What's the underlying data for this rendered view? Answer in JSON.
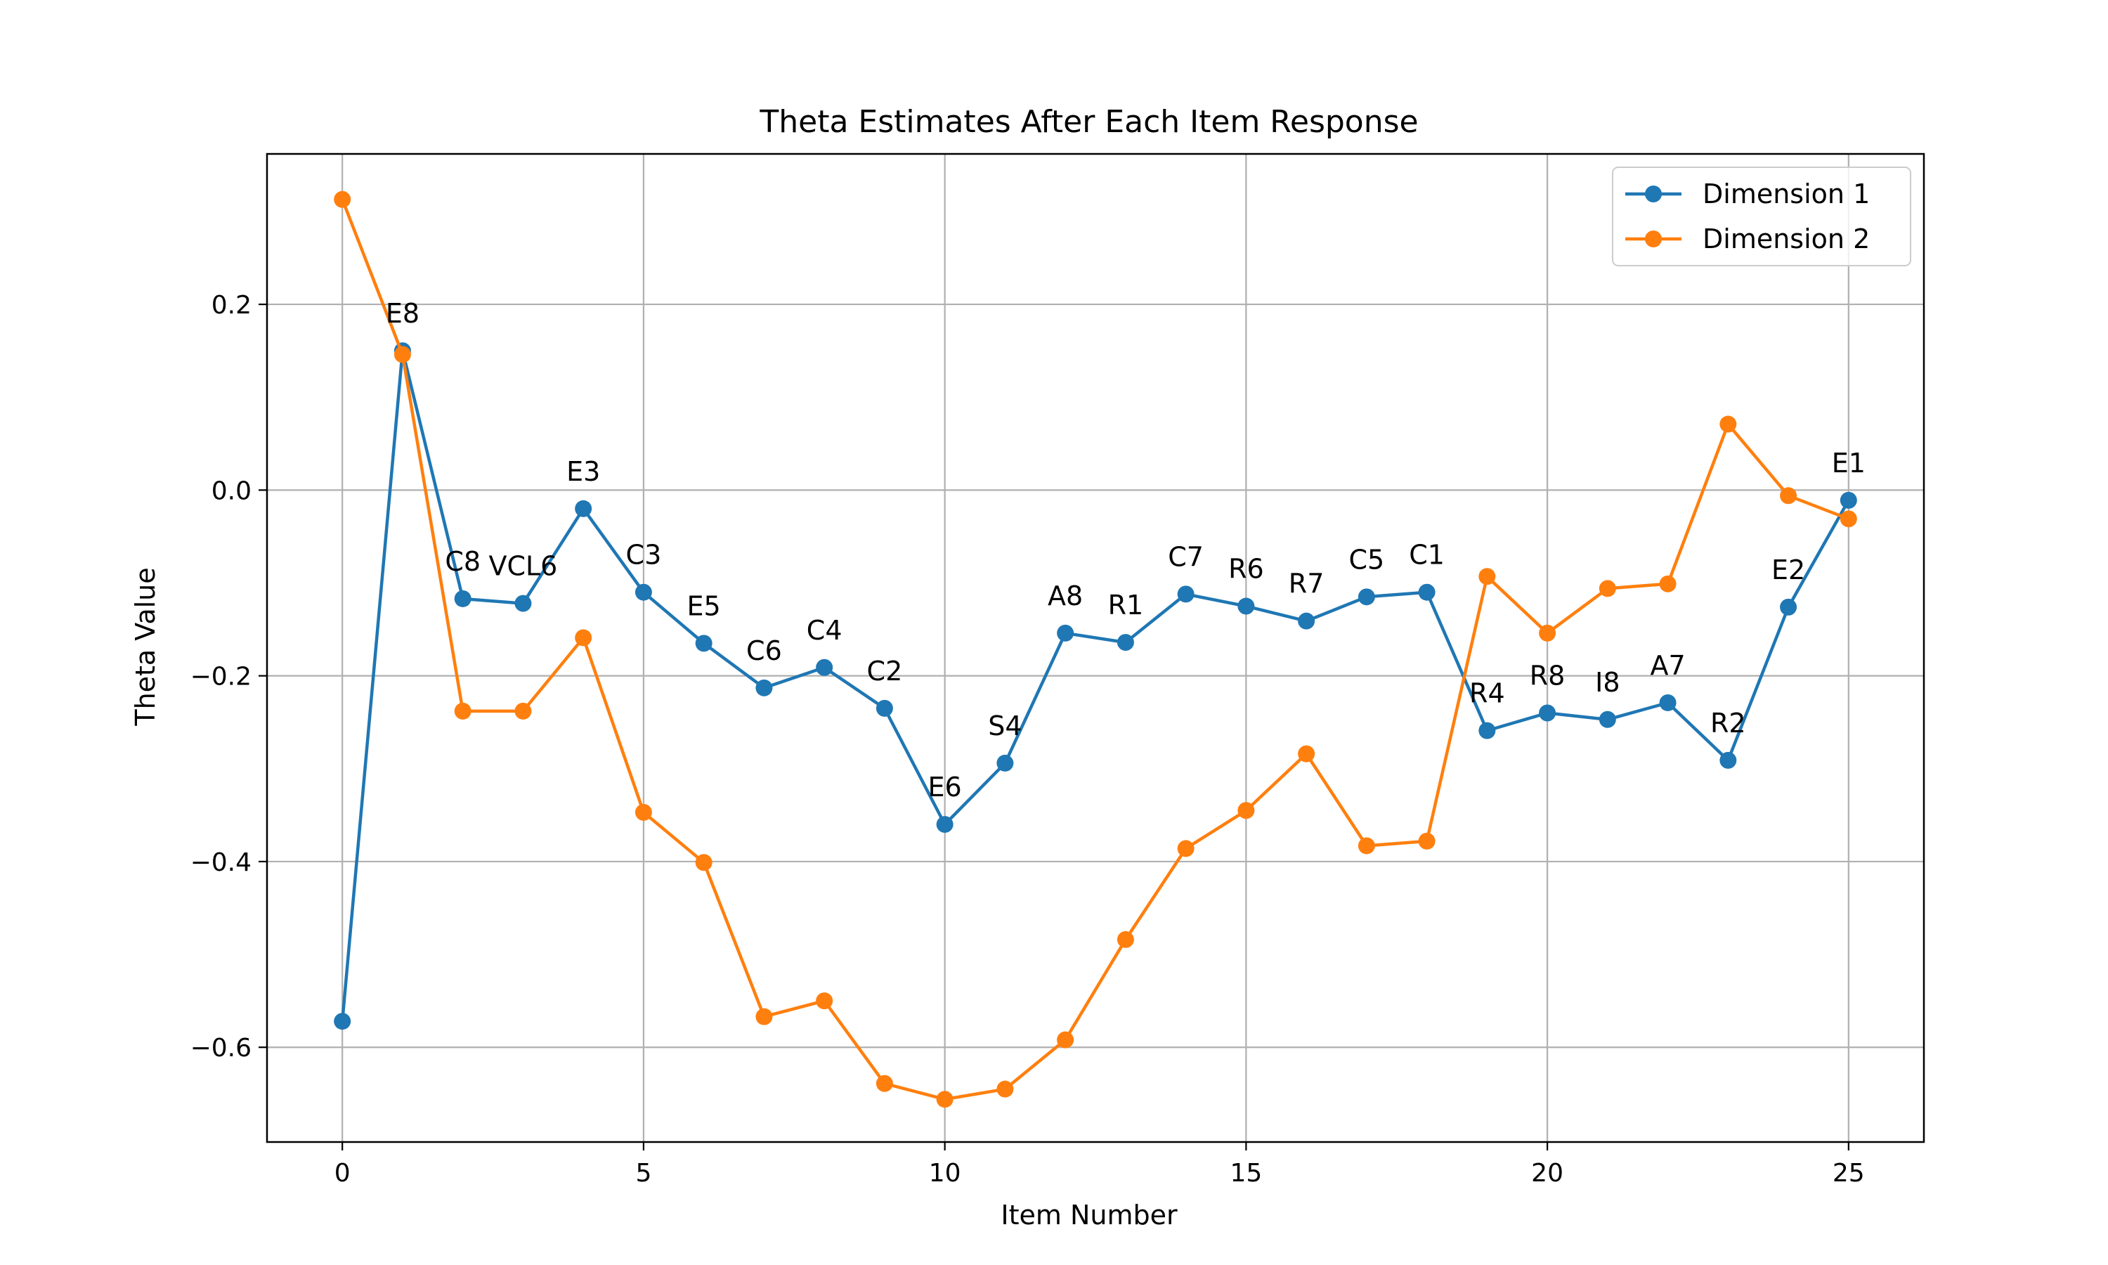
{
  "chart_data": {
    "type": "line",
    "title": "Theta Estimates After Each Item Response",
    "xlabel": "Item Number",
    "ylabel": "Theta Value",
    "xlim": [
      -1.25,
      26.25
    ],
    "ylim": [
      -0.702,
      0.362
    ],
    "xticks": [
      0,
      5,
      10,
      15,
      20,
      25
    ],
    "xtick_labels": [
      "0",
      "5",
      "10",
      "15",
      "20",
      "25"
    ],
    "yticks": [
      -0.6,
      -0.4,
      -0.2,
      0.0,
      0.2
    ],
    "ytick_labels": [
      "−0.6",
      "−0.4",
      "−0.2",
      "0.0",
      "0.2"
    ],
    "grid": true,
    "legend_position": "top-right",
    "x": [
      0,
      1,
      2,
      3,
      4,
      5,
      6,
      7,
      8,
      9,
      10,
      11,
      12,
      13,
      14,
      15,
      16,
      17,
      18,
      19,
      20,
      21,
      22,
      23,
      24,
      25
    ],
    "point_labels": [
      "",
      "E8",
      "C8",
      "VCL6",
      "E3",
      "C3",
      "E5",
      "C6",
      "C4",
      "C2",
      "E6",
      "S4",
      "A8",
      "R1",
      "C7",
      "R6",
      "R7",
      "C5",
      "C1",
      "R4",
      "R8",
      "I8",
      "A7",
      "R2",
      "E2",
      "E1"
    ],
    "series": [
      {
        "name": "Dimension 1",
        "color": "#1f77b4",
        "values": [
          -0.572,
          0.15,
          -0.117,
          -0.122,
          -0.02,
          -0.11,
          -0.165,
          -0.213,
          -0.191,
          -0.235,
          -0.36,
          -0.294,
          -0.154,
          -0.164,
          -0.112,
          -0.125,
          -0.141,
          -0.115,
          -0.11,
          -0.259,
          -0.24,
          -0.247,
          -0.229,
          -0.291,
          -0.126,
          -0.011
        ]
      },
      {
        "name": "Dimension 2",
        "color": "#ff7f0e",
        "values": [
          0.313,
          0.146,
          -0.238,
          -0.238,
          -0.159,
          -0.347,
          -0.401,
          -0.567,
          -0.55,
          -0.639,
          -0.656,
          -0.645,
          -0.592,
          -0.484,
          -0.386,
          -0.345,
          -0.284,
          -0.383,
          -0.378,
          -0.093,
          -0.154,
          -0.106,
          -0.101,
          0.071,
          -0.006,
          -0.031
        ]
      }
    ]
  }
}
